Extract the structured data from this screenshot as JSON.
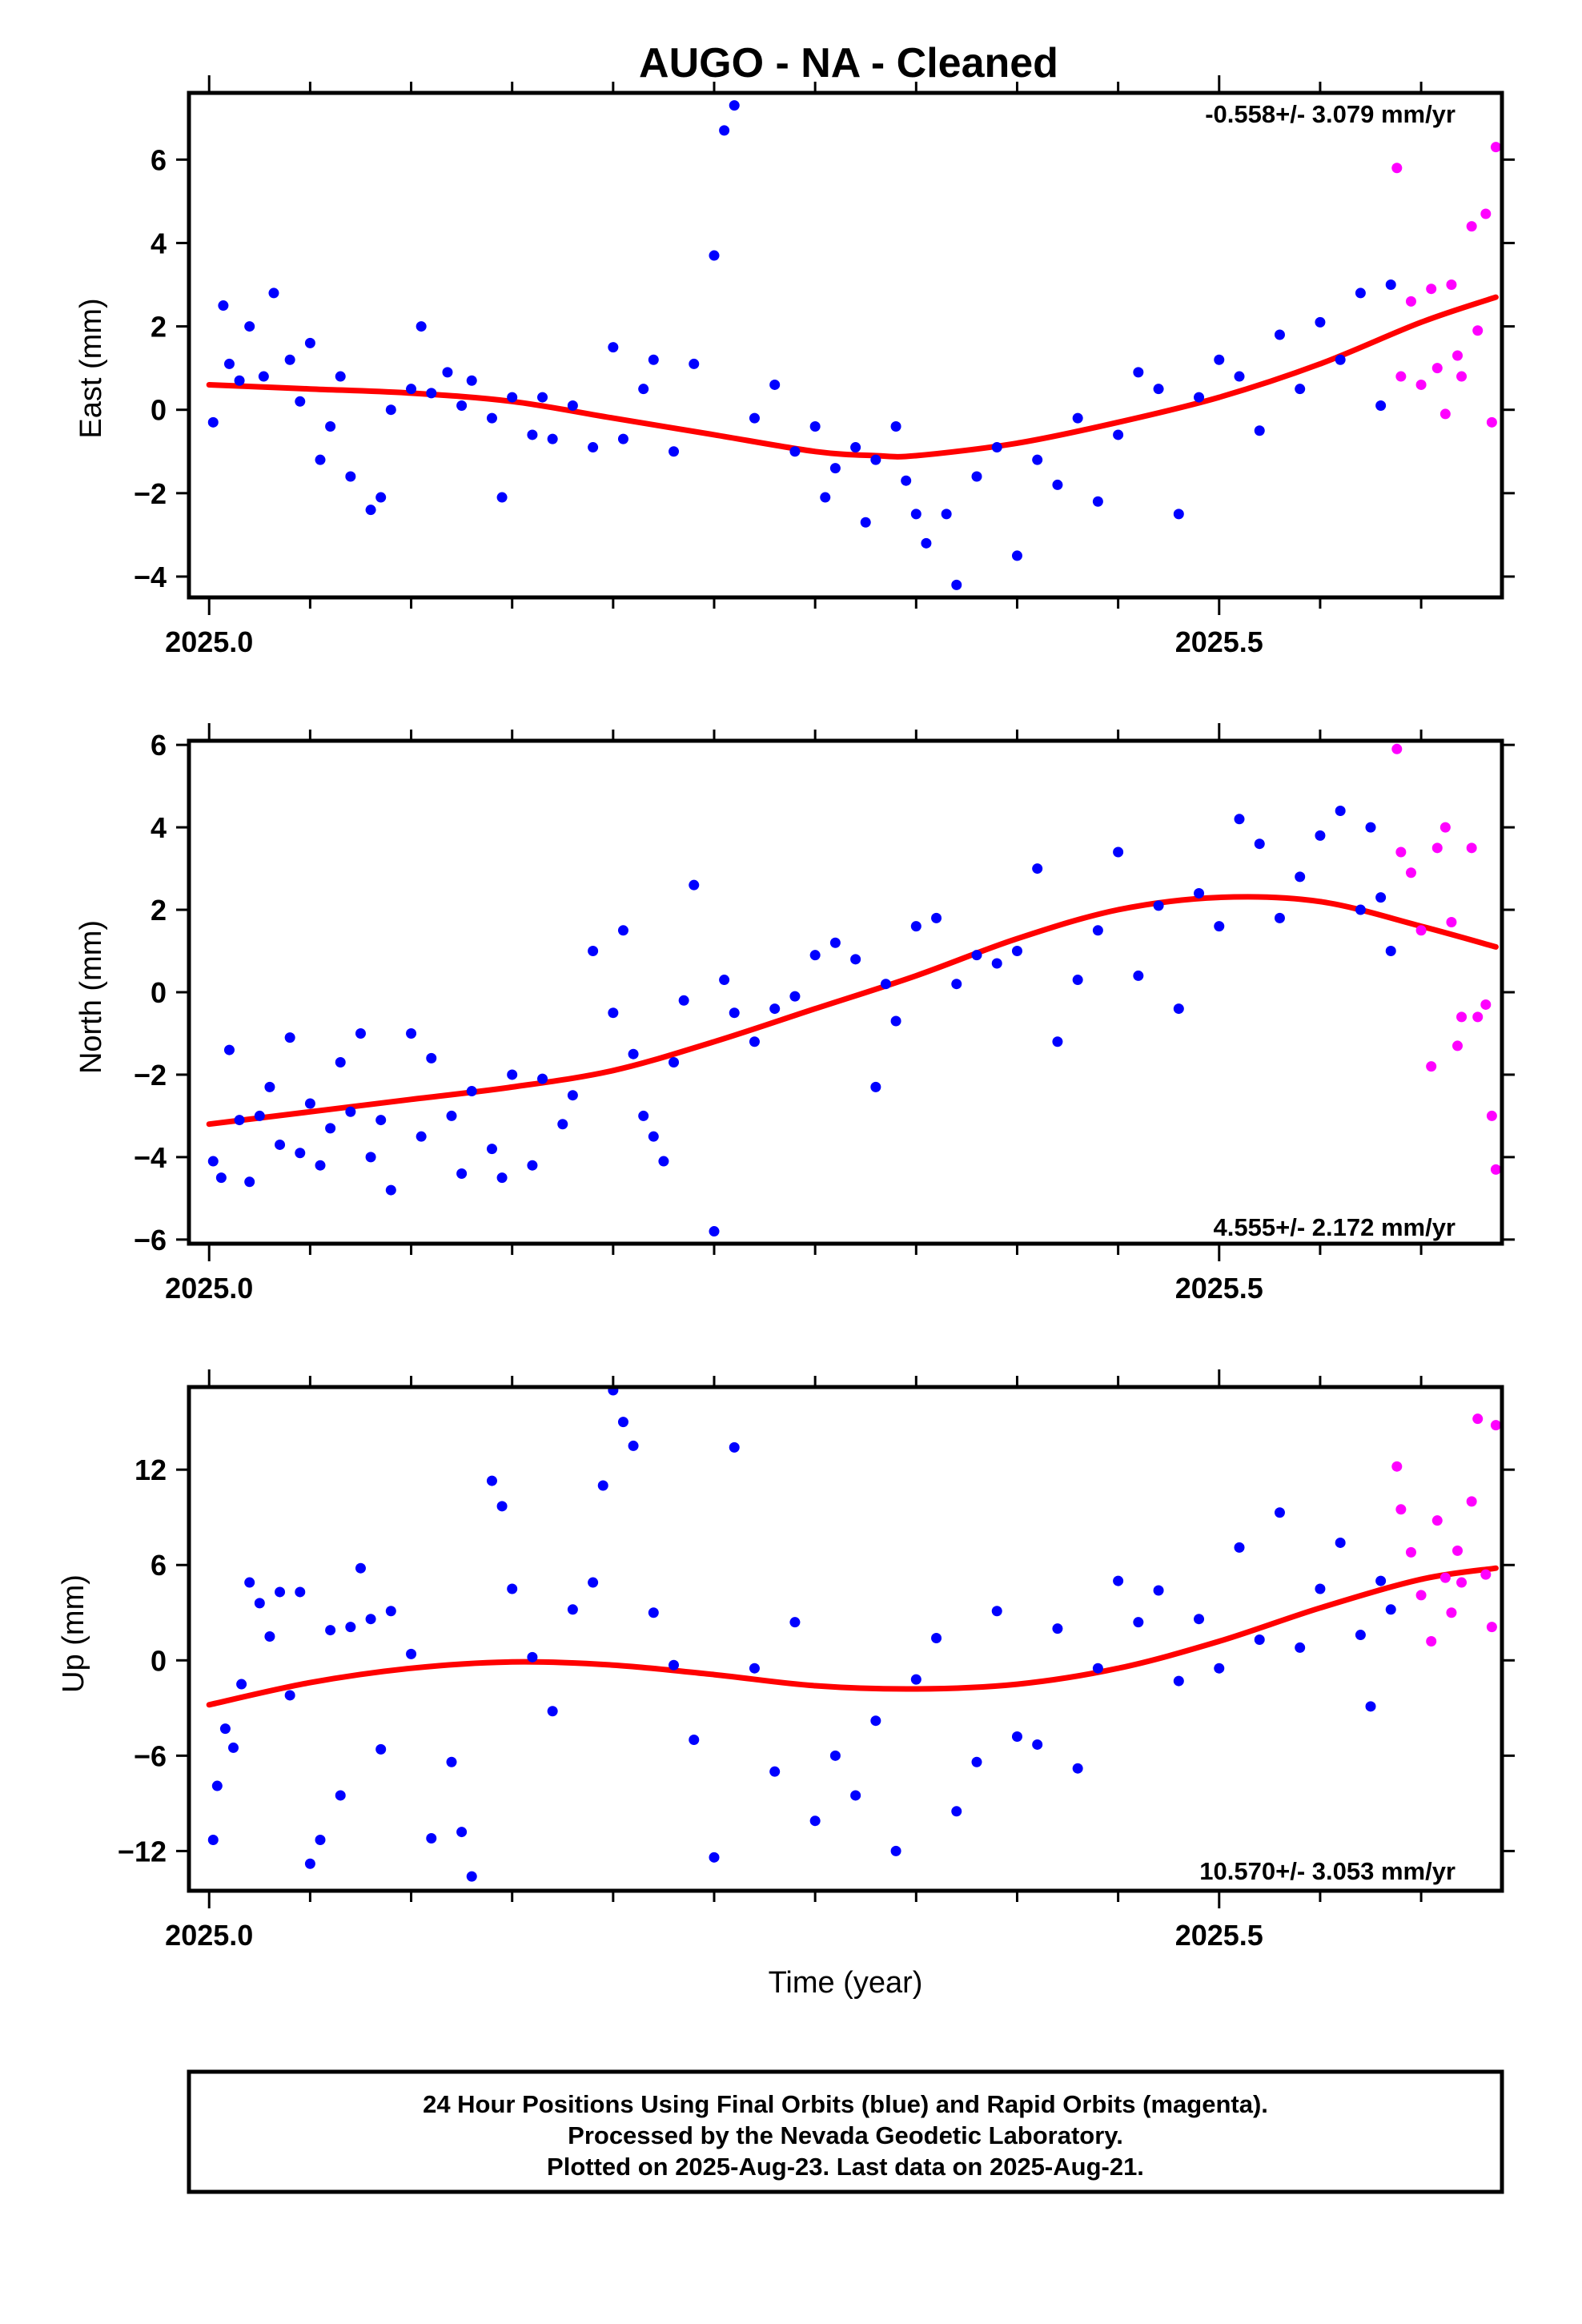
{
  "title": "AUGO  - NA - Cleaned",
  "xlabel": "Time (year)",
  "footer": {
    "line1": "24 Hour Positions Using Final Orbits (blue) and Rapid Orbits (magenta).",
    "line2": "Processed by the Nevada Geodetic Laboratory.",
    "line3": "Plotted on 2025-Aug-23. Last data on 2025-Aug-21."
  },
  "colors": {
    "final": "#0000ff",
    "rapid": "#ff00ff",
    "fit": "#ff0000",
    "axis": "#000000"
  },
  "chart_data": [
    {
      "type": "scatter",
      "ylabel": "East (mm)",
      "rate": "-0.558+/- 3.079 mm/yr",
      "rate_position": "top-right",
      "xlim": [
        2024.99,
        2025.64
      ],
      "ylim": [
        -4.5,
        7.6
      ],
      "x_ticks": [
        2025.0,
        2025.5
      ],
      "x_tick_labels": [
        "2025.0",
        "2025.5"
      ],
      "y_ticks": [
        -4,
        -2,
        0,
        2,
        4,
        6
      ],
      "y_tick_labels": [
        "−4",
        "−2",
        "0",
        "2",
        "4",
        "6"
      ],
      "fit_curve": {
        "x": [
          2025.0,
          2025.05,
          2025.1,
          2025.15,
          2025.2,
          2025.25,
          2025.3,
          2025.33,
          2025.35,
          2025.4,
          2025.45,
          2025.5,
          2025.55,
          2025.6,
          2025.637
        ],
        "y": [
          0.6,
          0.5,
          0.4,
          0.2,
          -0.2,
          -0.6,
          -1.0,
          -1.1,
          -1.1,
          -0.8,
          -0.3,
          0.3,
          1.1,
          2.1,
          2.7
        ]
      },
      "series": [
        {
          "name": "Final Orbits",
          "color": "#0000ff",
          "x": [
            2025.002,
            2025.007,
            2025.01,
            2025.015,
            2025.02,
            2025.027,
            2025.032,
            2025.04,
            2025.045,
            2025.05,
            2025.055,
            2025.06,
            2025.065,
            2025.07,
            2025.08,
            2025.085,
            2025.09,
            2025.1,
            2025.105,
            2025.11,
            2025.118,
            2025.125,
            2025.13,
            2025.14,
            2025.145,
            2025.15,
            2025.16,
            2025.165,
            2025.17,
            2025.18,
            2025.19,
            2025.2,
            2025.205,
            2025.215,
            2025.22,
            2025.23,
            2025.24,
            2025.25,
            2025.255,
            2025.26,
            2025.27,
            2025.28,
            2025.29,
            2025.3,
            2025.305,
            2025.31,
            2025.32,
            2025.325,
            2025.33,
            2025.34,
            2025.345,
            2025.35,
            2025.355,
            2025.365,
            2025.37,
            2025.38,
            2025.39,
            2025.4,
            2025.41,
            2025.42,
            2025.43,
            2025.44,
            2025.45,
            2025.46,
            2025.47,
            2025.48,
            2025.49,
            2025.5,
            2025.51,
            2025.52,
            2025.53,
            2025.54,
            2025.55,
            2025.56,
            2025.57,
            2025.58,
            2025.585
          ],
          "y": [
            -0.3,
            2.5,
            1.1,
            0.7,
            2.0,
            0.8,
            2.8,
            1.2,
            0.2,
            1.6,
            -1.2,
            -0.4,
            0.8,
            -1.6,
            -2.4,
            -2.1,
            0.0,
            0.5,
            2.0,
            0.4,
            0.9,
            0.1,
            0.7,
            -0.2,
            -2.1,
            0.3,
            -0.6,
            0.3,
            -0.7,
            0.1,
            -0.9,
            1.5,
            -0.7,
            0.5,
            1.2,
            -1.0,
            1.1,
            3.7,
            6.7,
            7.3,
            -0.2,
            0.6,
            -1.0,
            -0.4,
            -2.1,
            -1.4,
            -0.9,
            -2.7,
            -1.2,
            -0.4,
            -1.7,
            -2.5,
            -3.2,
            -2.5,
            -4.2,
            -1.6,
            -0.9,
            -3.5,
            -1.2,
            -1.8,
            -0.2,
            -2.2,
            -0.6,
            0.9,
            0.5,
            -2.5,
            0.3,
            1.2,
            0.8,
            -0.5,
            1.8,
            0.5,
            2.1,
            1.2,
            2.8,
            0.1,
            3.0
          ]
        },
        {
          "name": "Rapid Orbits",
          "color": "#ff00ff",
          "x": [
            2025.588,
            2025.59,
            2025.595,
            2025.6,
            2025.605,
            2025.608,
            2025.612,
            2025.615,
            2025.618,
            2025.62,
            2025.625,
            2025.628,
            2025.632,
            2025.635,
            2025.637
          ],
          "y": [
            5.8,
            0.8,
            2.6,
            0.6,
            2.9,
            1.0,
            -0.1,
            3.0,
            1.3,
            0.8,
            4.4,
            1.9,
            4.7,
            -0.3,
            6.3
          ]
        }
      ]
    },
    {
      "type": "scatter",
      "ylabel": "North (mm)",
      "rate": "4.555+/- 2.172 mm/yr",
      "rate_position": "bottom-right",
      "xlim": [
        2024.99,
        2025.64
      ],
      "ylim": [
        -6.1,
        6.1
      ],
      "x_ticks": [
        2025.0,
        2025.5
      ],
      "x_tick_labels": [
        "2025.0",
        "2025.5"
      ],
      "y_ticks": [
        -6,
        -4,
        -2,
        0,
        2,
        4,
        6
      ],
      "y_tick_labels": [
        "−6",
        "−4",
        "−2",
        "0",
        "2",
        "4",
        "6"
      ],
      "fit_curve": {
        "x": [
          2025.0,
          2025.05,
          2025.1,
          2025.15,
          2025.2,
          2025.25,
          2025.3,
          2025.35,
          2025.4,
          2025.45,
          2025.5,
          2025.55,
          2025.6,
          2025.637
        ],
        "y": [
          -3.2,
          -2.9,
          -2.6,
          -2.3,
          -1.9,
          -1.2,
          -0.4,
          0.4,
          1.3,
          2.0,
          2.3,
          2.2,
          1.6,
          1.1
        ]
      },
      "series": [
        {
          "name": "Final Orbits",
          "color": "#0000ff",
          "x": [
            2025.002,
            2025.006,
            2025.01,
            2025.015,
            2025.02,
            2025.025,
            2025.03,
            2025.035,
            2025.04,
            2025.045,
            2025.05,
            2025.055,
            2025.06,
            2025.065,
            2025.07,
            2025.075,
            2025.08,
            2025.085,
            2025.09,
            2025.1,
            2025.105,
            2025.11,
            2025.12,
            2025.125,
            2025.13,
            2025.14,
            2025.145,
            2025.15,
            2025.16,
            2025.165,
            2025.175,
            2025.18,
            2025.19,
            2025.2,
            2025.205,
            2025.21,
            2025.215,
            2025.22,
            2025.225,
            2025.23,
            2025.235,
            2025.24,
            2025.25,
            2025.255,
            2025.26,
            2025.27,
            2025.28,
            2025.29,
            2025.3,
            2025.31,
            2025.32,
            2025.33,
            2025.335,
            2025.34,
            2025.35,
            2025.36,
            2025.37,
            2025.38,
            2025.39,
            2025.4,
            2025.41,
            2025.42,
            2025.43,
            2025.44,
            2025.45,
            2025.46,
            2025.47,
            2025.48,
            2025.49,
            2025.5,
            2025.51,
            2025.52,
            2025.53,
            2025.54,
            2025.55,
            2025.56,
            2025.57,
            2025.575,
            2025.58,
            2025.585
          ],
          "y": [
            -4.1,
            -4.5,
            -1.4,
            -3.1,
            -4.6,
            -3.0,
            -2.3,
            -3.7,
            -1.1,
            -3.9,
            -2.7,
            -4.2,
            -3.3,
            -1.7,
            -2.9,
            -1.0,
            -4.0,
            -3.1,
            -4.8,
            -1.0,
            -3.5,
            -1.6,
            -3.0,
            -4.4,
            -2.4,
            -3.8,
            -4.5,
            -2.0,
            -4.2,
            -2.1,
            -3.2,
            -2.5,
            1.0,
            -0.5,
            1.5,
            -1.5,
            -3.0,
            -3.5,
            -4.1,
            -1.7,
            -0.2,
            2.6,
            -5.8,
            0.3,
            -0.5,
            -1.2,
            -0.4,
            -0.1,
            0.9,
            1.2,
            0.8,
            -2.3,
            0.2,
            -0.7,
            1.6,
            1.8,
            0.2,
            0.9,
            0.7,
            1.0,
            3.0,
            -1.2,
            0.3,
            1.5,
            3.4,
            0.4,
            2.1,
            -0.4,
            2.4,
            1.6,
            4.2,
            3.6,
            1.8,
            2.8,
            3.8,
            4.4,
            2.0,
            4.0,
            2.3,
            1.0
          ]
        },
        {
          "name": "Rapid Orbits",
          "color": "#ff00ff",
          "x": [
            2025.588,
            2025.59,
            2025.595,
            2025.6,
            2025.605,
            2025.608,
            2025.612,
            2025.615,
            2025.618,
            2025.62,
            2025.625,
            2025.628,
            2025.632,
            2025.635,
            2025.637
          ],
          "y": [
            5.9,
            3.4,
            2.9,
            1.5,
            -1.8,
            3.5,
            4.0,
            1.7,
            -1.3,
            -0.6,
            3.5,
            -0.6,
            -0.3,
            -3.0,
            -4.3
          ]
        }
      ]
    },
    {
      "type": "scatter",
      "ylabel": "Up (mm)",
      "rate": "10.570+/- 3.053 mm/yr",
      "rate_position": "bottom-right",
      "xlim": [
        2024.99,
        2025.64
      ],
      "ylim": [
        -14.5,
        17.2
      ],
      "x_ticks": [
        2025.0,
        2025.5
      ],
      "x_tick_labels": [
        "2025.0",
        "2025.5"
      ],
      "y_ticks": [
        -12,
        -6,
        0,
        6,
        12
      ],
      "y_tick_labels": [
        "−12",
        "−6",
        "0",
        "6",
        "12"
      ],
      "fit_curve": {
        "x": [
          2025.0,
          2025.05,
          2025.1,
          2025.15,
          2025.2,
          2025.25,
          2025.3,
          2025.35,
          2025.4,
          2025.45,
          2025.5,
          2025.55,
          2025.6,
          2025.637
        ],
        "y": [
          -2.8,
          -1.4,
          -0.5,
          -0.1,
          -0.3,
          -0.9,
          -1.6,
          -1.8,
          -1.5,
          -0.5,
          1.2,
          3.3,
          5.1,
          5.8
        ]
      },
      "series": [
        {
          "name": "Final Orbits",
          "color": "#0000ff",
          "x": [
            2025.002,
            2025.004,
            2025.008,
            2025.012,
            2025.016,
            2025.02,
            2025.025,
            2025.03,
            2025.035,
            2025.04,
            2025.045,
            2025.05,
            2025.055,
            2025.06,
            2025.065,
            2025.07,
            2025.075,
            2025.08,
            2025.085,
            2025.09,
            2025.1,
            2025.11,
            2025.12,
            2025.125,
            2025.13,
            2025.14,
            2025.145,
            2025.15,
            2025.16,
            2025.17,
            2025.18,
            2025.19,
            2025.195,
            2025.2,
            2025.205,
            2025.21,
            2025.22,
            2025.23,
            2025.24,
            2025.25,
            2025.26,
            2025.27,
            2025.28,
            2025.29,
            2025.3,
            2025.31,
            2025.32,
            2025.33,
            2025.34,
            2025.35,
            2025.36,
            2025.37,
            2025.38,
            2025.39,
            2025.4,
            2025.41,
            2025.42,
            2025.43,
            2025.44,
            2025.45,
            2025.46,
            2025.47,
            2025.48,
            2025.49,
            2025.5,
            2025.51,
            2025.52,
            2025.53,
            2025.54,
            2025.55,
            2025.56,
            2025.57,
            2025.575,
            2025.58,
            2025.585
          ],
          "y": [
            -11.3,
            -7.9,
            -4.3,
            -5.5,
            -1.5,
            4.9,
            3.6,
            1.5,
            4.3,
            -2.2,
            4.3,
            -12.8,
            -11.3,
            1.9,
            -8.5,
            2.1,
            5.8,
            2.6,
            -5.6,
            3.1,
            0.4,
            -11.2,
            -6.4,
            -10.8,
            -13.6,
            11.3,
            9.7,
            4.5,
            0.2,
            -3.2,
            3.2,
            4.9,
            11.0,
            17.0,
            15.0,
            13.5,
            3.0,
            -0.3,
            -5.0,
            -12.4,
            13.4,
            -0.5,
            -7.0,
            2.4,
            -10.1,
            -6.0,
            -8.5,
            -3.8,
            -12.0,
            -1.2,
            1.4,
            -9.5,
            -6.4,
            3.1,
            -4.8,
            -5.3,
            2.0,
            -6.8,
            -0.5,
            5.0,
            2.4,
            4.4,
            -1.3,
            2.6,
            -0.5,
            7.1,
            1.3,
            9.3,
            0.8,
            4.5,
            7.4,
            1.6,
            -2.9,
            5.0,
            3.2
          ]
        },
        {
          "name": "Rapid Orbits",
          "color": "#ff00ff",
          "x": [
            2025.588,
            2025.59,
            2025.595,
            2025.6,
            2025.605,
            2025.608,
            2025.612,
            2025.615,
            2025.618,
            2025.62,
            2025.625,
            2025.628,
            2025.632,
            2025.635,
            2025.637
          ],
          "y": [
            12.2,
            9.5,
            6.8,
            4.1,
            1.2,
            8.8,
            5.2,
            3.0,
            6.9,
            4.9,
            10.0,
            15.2,
            5.4,
            2.1,
            14.8
          ]
        }
      ]
    }
  ]
}
